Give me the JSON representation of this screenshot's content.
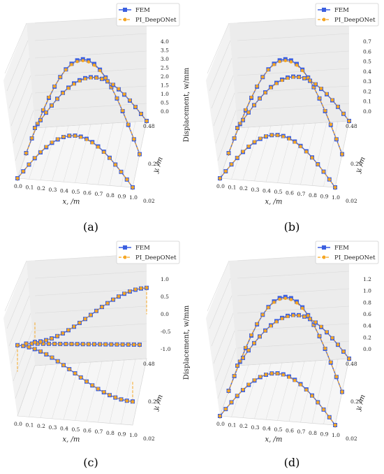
{
  "legend": {
    "fem": "FEM",
    "pi": "PI_DeepONet"
  },
  "axes": {
    "xlabel": "x, /m",
    "ylabel": "y, /m",
    "zlabel": "Displacement, w/mm",
    "xticks": [
      "0.0",
      "0.1",
      "0.2",
      "0.3",
      "0.4",
      "0.5",
      "0.6",
      "0.7",
      "0.8",
      "0.9",
      "1.0"
    ],
    "yticks": [
      "0.02",
      "0.25",
      "0.48"
    ]
  },
  "colors": {
    "fem": "#3b5fe0",
    "pi": "#f5a623",
    "grid": "#d9d9d9",
    "pane": "#f2f2f2"
  },
  "chart_data": [
    {
      "type": "line",
      "caption": "(a)",
      "zticks": [
        "0.0",
        "0.5",
        "1.0",
        "1.5",
        "2.0",
        "2.5",
        "3.0",
        "3.5",
        "4.0"
      ],
      "zlim": [
        0,
        4.0
      ],
      "y_sections": [
        0.02,
        0.25,
        0.48
      ],
      "section_peaks": [
        2.0,
        4.0,
        2.0
      ],
      "shape": "sin"
    },
    {
      "type": "line",
      "caption": "(b)",
      "zticks": [
        "0.0",
        "0.1",
        "0.2",
        "0.3",
        "0.4",
        "0.5",
        "0.6",
        "0.7"
      ],
      "zlim": [
        0,
        0.75
      ],
      "y_sections": [
        0.02,
        0.25,
        0.48
      ],
      "section_peaks": [
        0.38,
        0.75,
        0.38
      ],
      "shape": "sin"
    },
    {
      "type": "line",
      "caption": "(c)",
      "zticks": [
        "-1.0",
        "-0.5",
        "0.0",
        "0.5",
        "1.0"
      ],
      "zlim": [
        -1.2,
        1.2
      ],
      "y_sections": [
        0.02,
        0.25,
        0.48
      ],
      "section_peaks": [
        0.6,
        0.0,
        -0.6
      ],
      "shape": "cos"
    },
    {
      "type": "line",
      "caption": "(d)",
      "zticks": [
        "0.0",
        "0.2",
        "0.4",
        "0.6",
        "0.8",
        "1.0",
        "1.2"
      ],
      "zlim": [
        0,
        1.3
      ],
      "y_sections": [
        0.02,
        0.25,
        0.48
      ],
      "section_peaks": [
        0.65,
        1.3,
        0.65
      ],
      "shape": "sin"
    }
  ]
}
